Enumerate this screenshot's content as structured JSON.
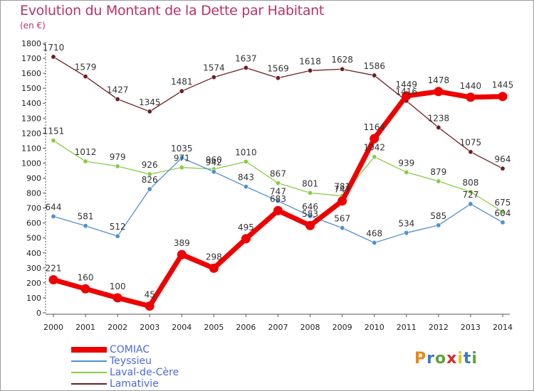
{
  "title": "Evolution du Montant de la Dette par Habitant",
  "subtitle": "(en €)",
  "logo_text": "Proxiti",
  "chart_data": {
    "type": "line",
    "title": "Evolution du Montant de la Dette par Habitant",
    "ylabel": "(en €)",
    "ylim": [
      0,
      1800
    ],
    "yticks": [
      0,
      100,
      200,
      300,
      400,
      500,
      600,
      700,
      800,
      900,
      1000,
      1100,
      1200,
      1300,
      1400,
      1500,
      1600,
      1700,
      1800
    ],
    "categories": [
      "2000",
      "2001",
      "2002",
      "2003",
      "2004",
      "2005",
      "2006",
      "2007",
      "2008",
      "2009",
      "2010",
      "2011",
      "2012",
      "2013",
      "2014"
    ],
    "grid": false,
    "legend_position": "bottom-left",
    "series": [
      {
        "name": "COMIAC",
        "color": "#ee0000",
        "values": [
          221,
          160,
          100,
          45,
          389,
          298,
          495,
          683,
          583,
          747,
          1164,
          1449,
          1478,
          1440,
          1445
        ]
      },
      {
        "name": "Teyssieu",
        "color": "#4f8fd0",
        "values": [
          644,
          581,
          512,
          826,
          1035,
          942,
          843,
          747,
          646,
          567,
          468,
          534,
          585,
          727,
          604
        ]
      },
      {
        "name": "Laval-de-Cère",
        "color": "#88cc44",
        "values": [
          1151,
          1012,
          979,
          926,
          971,
          960,
          1010,
          867,
          801,
          781,
          1042,
          939,
          879,
          808,
          675
        ]
      },
      {
        "name": "Lamativie",
        "color": "#6e1f22",
        "values": [
          1710,
          1579,
          1427,
          1345,
          1481,
          1574,
          1637,
          1569,
          1618,
          1628,
          1586,
          1416,
          1238,
          1075,
          964
        ]
      }
    ]
  }
}
